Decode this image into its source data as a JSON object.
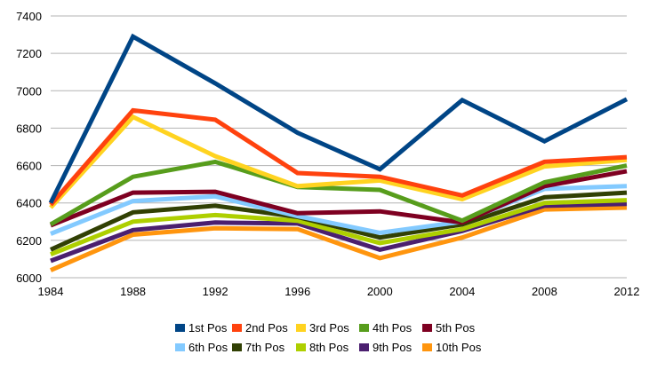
{
  "chart_data": {
    "type": "line",
    "title": "",
    "xlabel": "",
    "ylabel": "",
    "x": [
      1984,
      1988,
      1992,
      1996,
      2000,
      2004,
      2008,
      2012
    ],
    "ylim": [
      6000,
      7400
    ],
    "yticks": [
      6000,
      6200,
      6400,
      6600,
      6800,
      7000,
      7200,
      7400
    ],
    "grid": "horizontal",
    "legend_position": "bottom",
    "series": [
      {
        "name": "1st Pos",
        "color": "#004586",
        "values": [
          6400,
          7290,
          7040,
          6775,
          6580,
          6950,
          6730,
          6955
        ]
      },
      {
        "name": "2nd Pos",
        "color": "#ff420e",
        "values": [
          6390,
          6895,
          6845,
          6560,
          6540,
          6440,
          6620,
          6645
        ]
      },
      {
        "name": "3rd Pos",
        "color": "#ffd320",
        "values": [
          6375,
          6860,
          6650,
          6490,
          6520,
          6420,
          6595,
          6630
        ]
      },
      {
        "name": "4th Pos",
        "color": "#579d1c",
        "values": [
          6285,
          6540,
          6620,
          6485,
          6470,
          6305,
          6510,
          6600
        ]
      },
      {
        "name": "5th Pos",
        "color": "#7e0021",
        "values": [
          6280,
          6455,
          6460,
          6345,
          6355,
          6295,
          6490,
          6570
        ]
      },
      {
        "name": "6th Pos",
        "color": "#83caff",
        "values": [
          6235,
          6410,
          6435,
          6330,
          6240,
          6300,
          6475,
          6490
        ]
      },
      {
        "name": "7th Pos",
        "color": "#314004",
        "values": [
          6150,
          6350,
          6385,
          6325,
          6215,
          6285,
          6430,
          6455
        ]
      },
      {
        "name": "8th Pos",
        "color": "#aecf00",
        "values": [
          6125,
          6300,
          6335,
          6305,
          6185,
          6260,
          6400,
          6415
        ]
      },
      {
        "name": "9th Pos",
        "color": "#4b1f6f",
        "values": [
          6090,
          6255,
          6295,
          6290,
          6150,
          6250,
          6385,
          6395
        ]
      },
      {
        "name": "10th Pos",
        "color": "#ff950e",
        "values": [
          6040,
          6230,
          6265,
          6260,
          6105,
          6215,
          6365,
          6375
        ]
      }
    ]
  }
}
